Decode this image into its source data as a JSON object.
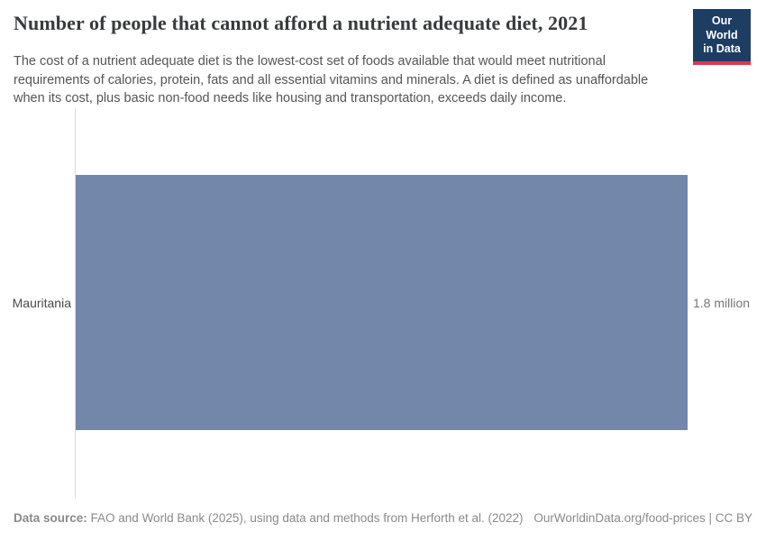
{
  "header": {
    "title": "Number of people that cannot afford a nutrient adequate diet, 2021",
    "subtitle": "The cost of a nutrient adequate diet is the lowest-cost set of foods available that would meet nutritional requirements of calories, protein, fats and all essential vitamins and minerals. A diet is defined as unaffordable when its cost, plus basic non-food needs like housing and transportation, exceeds daily income.",
    "logo": {
      "line1": "Our World",
      "line2": "in Data",
      "bg_color": "#1d3d63",
      "accent_color": "#e0354b"
    }
  },
  "chart_data": {
    "type": "bar",
    "orientation": "horizontal",
    "title": "Number of people that cannot afford a nutrient adequate diet, 2021",
    "categories": [
      "Mauritania"
    ],
    "values": [
      1800000
    ],
    "value_labels": [
      "1.8 million"
    ],
    "xlim": [
      0,
      1800000
    ],
    "grid": false,
    "legend": "none",
    "bar_color": "#7387ab",
    "axis_line_color": "#dcdcdc"
  },
  "footer": {
    "datasource_label": "Data source:",
    "datasource_text": " FAO and World Bank (2025), using data and methods from Herforth et al. (2022)",
    "license_text": "OurWorldinData.org/food-prices | CC BY"
  }
}
